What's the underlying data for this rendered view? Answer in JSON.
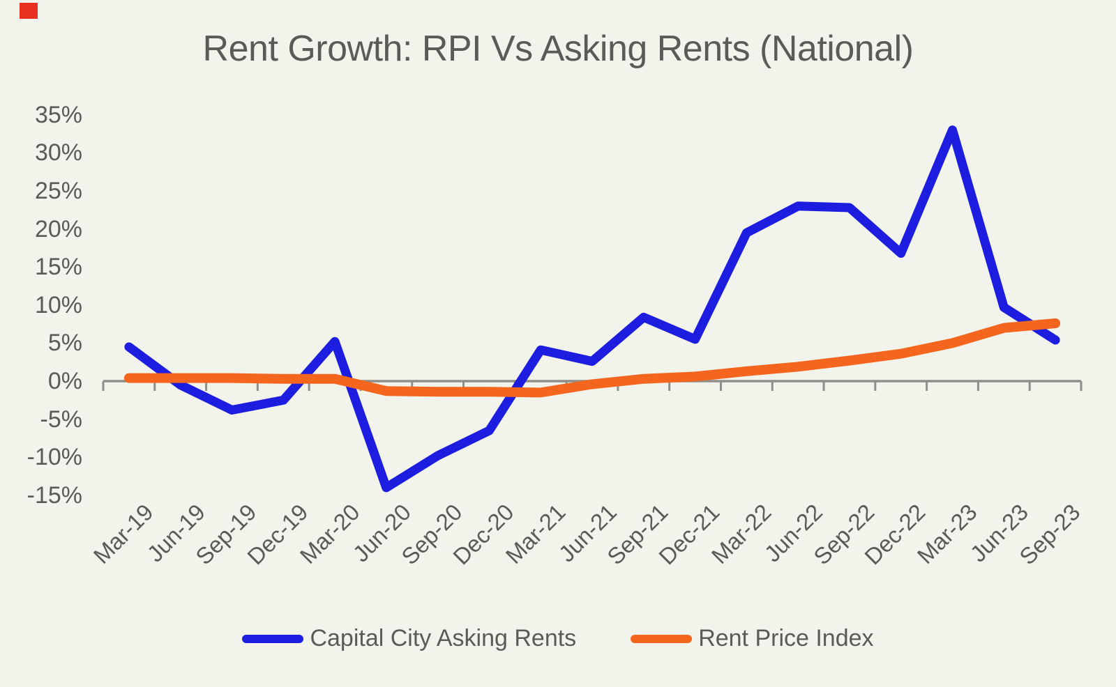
{
  "page": {
    "background": "#f2f4ec"
  },
  "text_color": "#5a5a57",
  "axis_color": "#8e8e8b",
  "corner_marker": {
    "shape": "square",
    "color": "#e8301f"
  },
  "legend": {
    "items": [
      {
        "label": "Capital City Asking Rents",
        "color": "#1d1de0"
      },
      {
        "label": "Rent Price Index",
        "color": "#f4661d"
      }
    ]
  },
  "chart_data": {
    "type": "line",
    "title": "Rent Growth: RPI Vs Asking Rents (National)",
    "categories": [
      "Mar-19",
      "Jun-19",
      "Sep-19",
      "Dec-19",
      "Mar-20",
      "Jun-20",
      "Sep-20",
      "Dec-20",
      "Mar-21",
      "Jun-21",
      "Sep-21",
      "Dec-21",
      "Mar-22",
      "Jun-22",
      "Sep-22",
      "Dec-22",
      "Mar-23",
      "Jun-23",
      "Sep-23"
    ],
    "series": [
      {
        "name": "Capital City Asking Rents",
        "color": "#1d1de0",
        "values": [
          4.5,
          -0.5,
          -3.8,
          -2.5,
          5.2,
          -14,
          -9.8,
          -6.5,
          4.1,
          2.6,
          8.4,
          5.5,
          19.5,
          23,
          22.8,
          16.8,
          33,
          9.7,
          5.4
        ]
      },
      {
        "name": "Rent Price Index",
        "color": "#f4661d",
        "values": [
          0.4,
          0.4,
          0.4,
          0.3,
          0.3,
          -1.3,
          -1.4,
          -1.4,
          -1.5,
          -0.4,
          0.3,
          0.6,
          1.3,
          1.9,
          2.7,
          3.6,
          5,
          7,
          7.6
        ]
      }
    ],
    "y_axis": {
      "unit": "%",
      "min": -15,
      "max": 35,
      "step": 5,
      "labels": [
        "35%",
        "30%",
        "25%",
        "20%",
        "15%",
        "10%",
        "5%",
        "0%",
        "-5%",
        "-10%",
        "-15%"
      ],
      "values": [
        35,
        30,
        25,
        20,
        15,
        10,
        5,
        0,
        -5,
        -10,
        -15
      ]
    },
    "xlabel": "",
    "ylabel": "",
    "x_label_rotation": 45,
    "grid": false,
    "legend_position": "bottom"
  }
}
